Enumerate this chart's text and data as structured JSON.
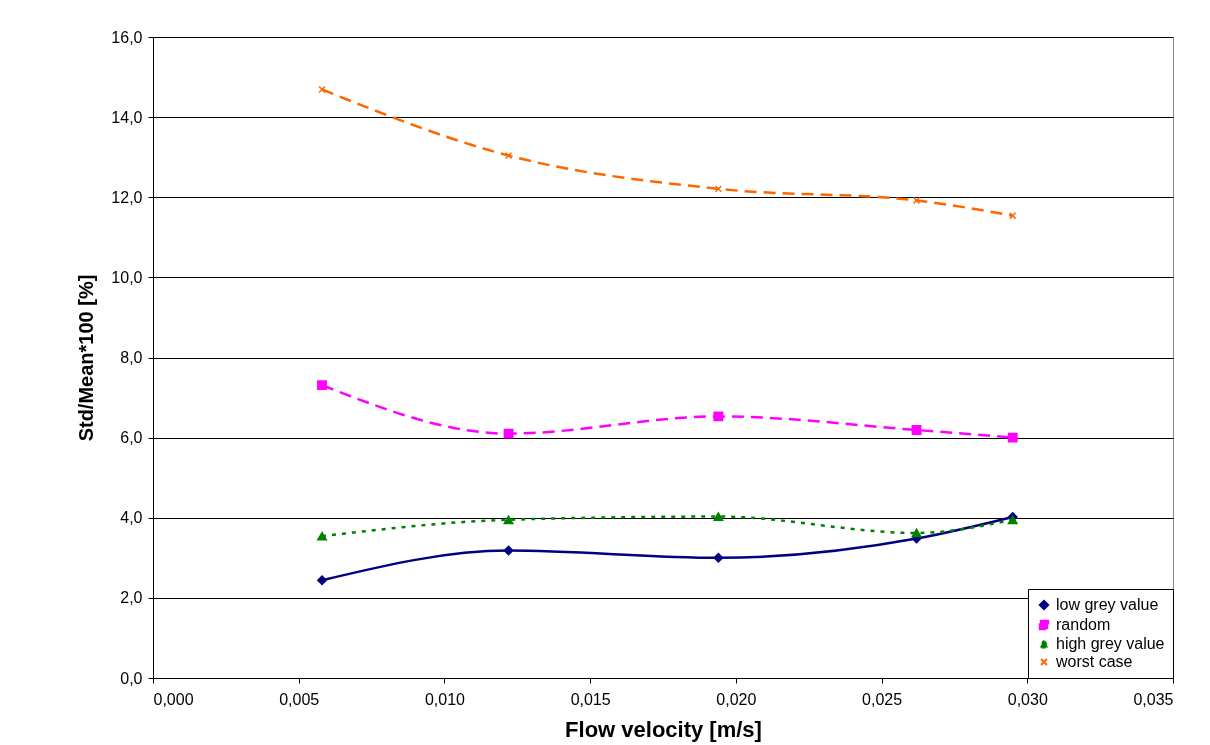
{
  "chart_data": {
    "type": "line",
    "xlabel": "Flow velocity [m/s]",
    "ylabel": "Std/Mean*100 [%]",
    "x": [
      0.0058,
      0.0122,
      0.0194,
      0.0262,
      0.0295
    ],
    "series": [
      {
        "name": "low grey value",
        "color": "#000080",
        "marker": "diamond",
        "line_style": "solid",
        "values": [
          2.44,
          3.18,
          3.0,
          3.48,
          4.02
        ]
      },
      {
        "name": "random",
        "color": "#ff00ff",
        "marker": "square",
        "line_style": "dashed",
        "values": [
          7.31,
          6.1,
          6.53,
          6.19,
          6.0
        ]
      },
      {
        "name": "high grey value",
        "color": "#008000",
        "marker": "triangle",
        "line_style": "dotted",
        "values": [
          3.54,
          3.95,
          4.03,
          3.62,
          3.95
        ]
      },
      {
        "name": "worst case",
        "color": "#ff6600",
        "marker": "cross",
        "line_style": "dashed",
        "values": [
          14.69,
          13.04,
          12.21,
          11.92,
          11.54
        ]
      }
    ],
    "xlim": [
      0,
      0.035
    ],
    "xticks": [
      {
        "value": 0,
        "label": "0,000"
      },
      {
        "value": 0.005,
        "label": "0,005"
      },
      {
        "value": 0.01,
        "label": "0,010"
      },
      {
        "value": 0.015,
        "label": "0,015"
      },
      {
        "value": 0.02,
        "label": "0,020"
      },
      {
        "value": 0.025,
        "label": "0,025"
      },
      {
        "value": 0.03,
        "label": "0,030"
      },
      {
        "value": 0.035,
        "label": "0,035"
      }
    ],
    "ylim": [
      0,
      16
    ],
    "yticks": [
      {
        "value": 0,
        "label": "0,0"
      },
      {
        "value": 2,
        "label": "2,0"
      },
      {
        "value": 4,
        "label": "4,0"
      },
      {
        "value": 6,
        "label": "6,0"
      },
      {
        "value": 8,
        "label": "8,0"
      },
      {
        "value": 10,
        "label": "10,0"
      },
      {
        "value": 12,
        "label": "12,0"
      },
      {
        "value": 14,
        "label": "14,0"
      },
      {
        "value": 16,
        "label": "16,0"
      }
    ],
    "grid": "y",
    "legend": "bottom right"
  }
}
